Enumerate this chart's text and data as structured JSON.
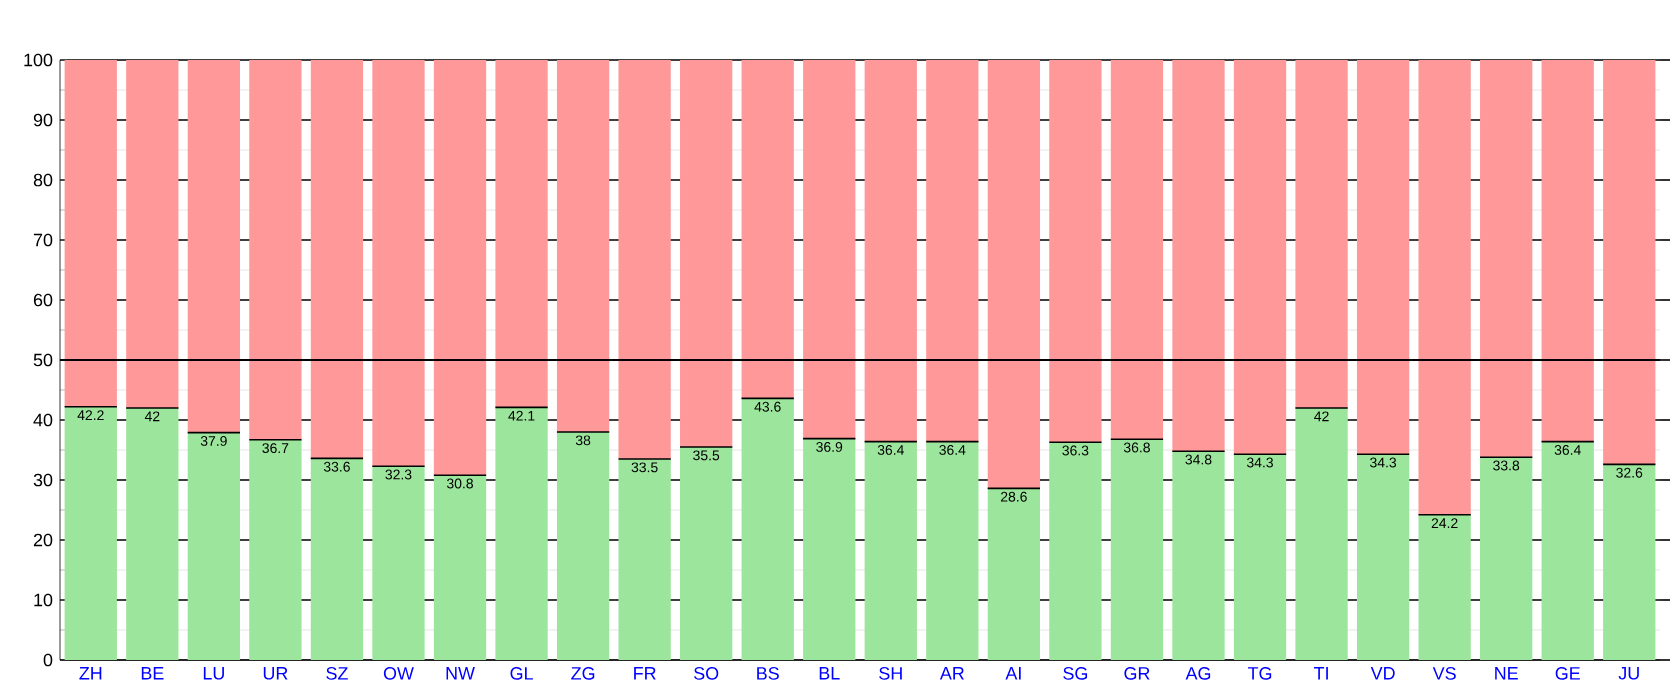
{
  "chart_data": {
    "type": "bar",
    "stacked": true,
    "categories": [
      "ZH",
      "BE",
      "LU",
      "UR",
      "SZ",
      "OW",
      "NW",
      "GL",
      "ZG",
      "FR",
      "SO",
      "BS",
      "BL",
      "SH",
      "AR",
      "AI",
      "SG",
      "GR",
      "AG",
      "TG",
      "TI",
      "VD",
      "VS",
      "NE",
      "GE",
      "JU"
    ],
    "series": [
      {
        "color": "#9ce59c",
        "values": [
          42.2,
          42,
          37.9,
          36.7,
          33.6,
          32.3,
          30.8,
          42.1,
          38,
          33.5,
          35.5,
          43.6,
          36.9,
          36.4,
          36.4,
          28.6,
          36.3,
          36.8,
          34.8,
          34.3,
          42,
          34.3,
          24.2,
          33.8,
          36.4,
          32.6
        ],
        "value_labels": [
          "42.2",
          "42",
          "37.9",
          "36.7",
          "33.6",
          "32.3",
          "30.8",
          "42.1",
          "38",
          "33.5",
          "35.5",
          "43.6",
          "36.9",
          "36.4",
          "36.4",
          "28.6",
          "36.3",
          "36.8",
          "34.8",
          "34.3",
          "42",
          "34.3",
          "24.2",
          "33.8",
          "36.4",
          "32.6"
        ]
      },
      {
        "color": "#ff9999",
        "values": [
          57.8,
          58,
          62.1,
          63.3,
          66.4,
          67.7,
          69.2,
          57.9,
          62,
          66.5,
          64.5,
          56.4,
          63.1,
          63.6,
          63.6,
          71.4,
          63.7,
          63.2,
          65.2,
          65.7,
          58,
          65.7,
          75.8,
          66.2,
          63.6,
          67.4
        ]
      }
    ],
    "ylim": [
      0,
      100
    ],
    "yticks": [
      0,
      10,
      20,
      30,
      40,
      50,
      60,
      70,
      80,
      90,
      100
    ],
    "grid": "y",
    "ref_lines": [
      {
        "axis": "y",
        "value": 50,
        "color": "#000000"
      }
    ]
  }
}
